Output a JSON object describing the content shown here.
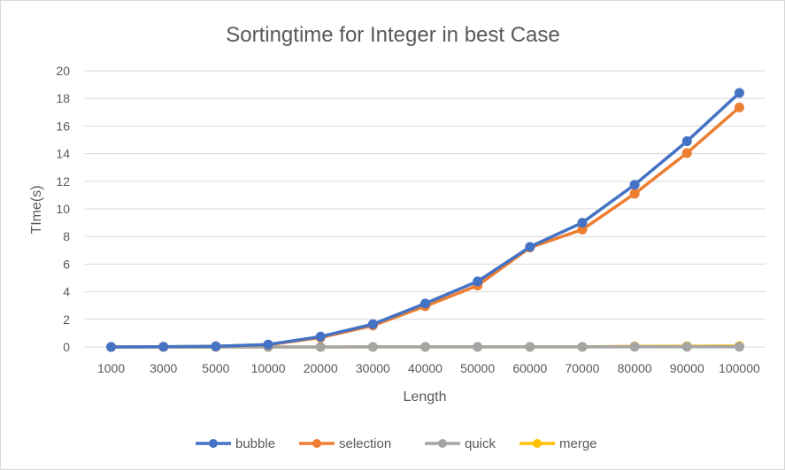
{
  "chart_data": {
    "type": "line",
    "title": "Sortingtime for Integer in best Case",
    "xlabel": "Length",
    "ylabel": "TIme(s)",
    "ylim": [
      0,
      20
    ],
    "yticks": [
      0,
      2,
      4,
      6,
      8,
      10,
      12,
      14,
      16,
      18,
      20
    ],
    "grid": true,
    "legend_position": "bottom",
    "categories": [
      "1000",
      "3000",
      "5000",
      "10000",
      "20000",
      "30000",
      "40000",
      "50000",
      "60000",
      "70000",
      "80000",
      "90000",
      "100000"
    ],
    "series": [
      {
        "name": "bubble",
        "color": "#4472c4",
        "values": [
          0.0,
          0.02,
          0.05,
          0.18,
          0.75,
          1.65,
          3.15,
          4.75,
          7.25,
          9.0,
          11.75,
          14.9,
          18.4
        ]
      },
      {
        "name": "selection",
        "color": "#ed7d31",
        "values": [
          0.0,
          0.02,
          0.05,
          0.16,
          0.68,
          1.55,
          2.95,
          4.45,
          7.2,
          8.5,
          11.1,
          14.05,
          17.35
        ]
      },
      {
        "name": "quick",
        "color": "#a5a5a5",
        "values": [
          0.0,
          0.0,
          0.0,
          0.0,
          0.0,
          0.01,
          0.01,
          0.01,
          0.01,
          0.01,
          0.02,
          0.02,
          0.02
        ]
      },
      {
        "name": "merge",
        "color": "#ffc000",
        "values": [
          0.0,
          0.0,
          0.0,
          0.0,
          0.0,
          0.01,
          0.01,
          0.01,
          0.01,
          0.01,
          0.05,
          0.06,
          0.07
        ]
      }
    ]
  }
}
